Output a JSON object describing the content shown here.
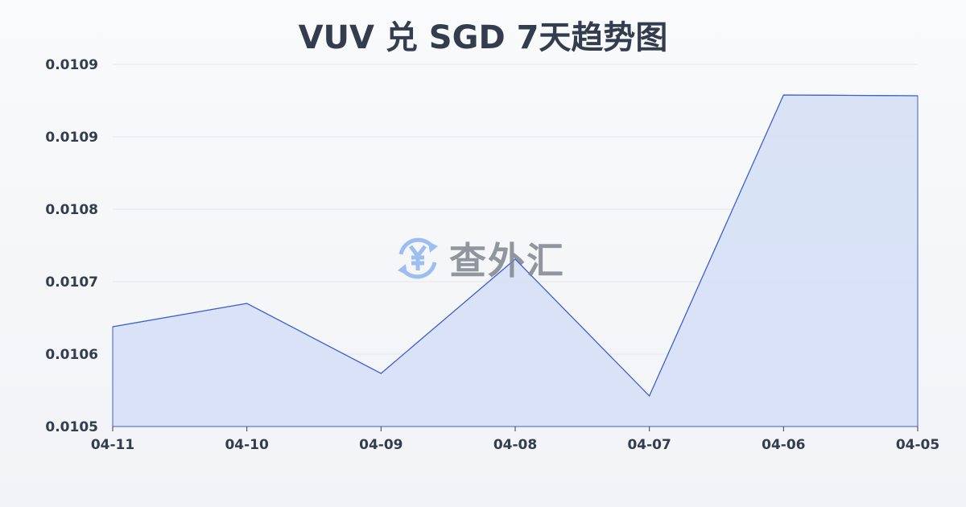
{
  "chart_data": {
    "type": "area",
    "title": "VUV 兑 SGD 7天趋势图",
    "categories": [
      "04-11",
      "04-10",
      "04-09",
      "04-08",
      "04-07",
      "04-06",
      "04-05"
    ],
    "series": [
      {
        "values": [
          0.010624,
          0.010653,
          0.010566,
          0.010708,
          0.010538,
          0.010912,
          0.010911
        ]
      }
    ],
    "ylim": [
      0.0105,
      0.01095
    ],
    "yticks": [
      0.0105,
      0.01059,
      0.01068,
      0.01077,
      0.01086,
      0.01095
    ],
    "ytick_labels": [
      "0.0105",
      "0.0106",
      "0.0107",
      "0.0108",
      "0.0109",
      "0.0109"
    ],
    "grid": true,
    "colors": {
      "line": "#3b5fcf",
      "fill": "#d6e0f5"
    }
  },
  "watermark": {
    "text": "查外汇",
    "icon": "yen-exchange-icon"
  }
}
